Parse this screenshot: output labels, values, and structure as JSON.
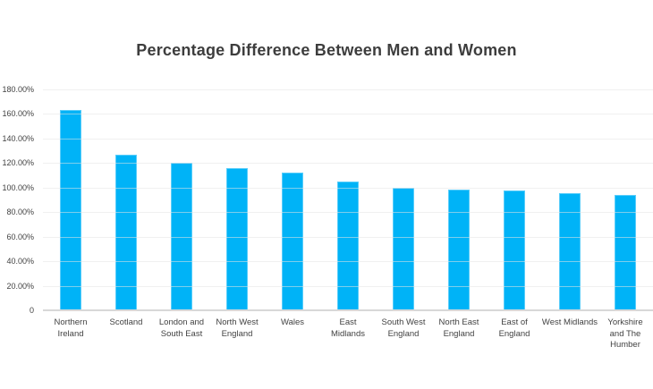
{
  "title": "Percentage Difference Between Men and Women",
  "chart_data": {
    "type": "bar",
    "title": "Percentage Difference Between Men and Women",
    "categories": [
      "Northern Ireland",
      "Scotland",
      "London and South East",
      "North West England",
      "Wales",
      "East Midlands",
      "South West England",
      "North East England",
      "East of England",
      "West Midlands",
      "Yorkshire and The Humber"
    ],
    "category_display": [
      "Northern\nIreland",
      "Scotland",
      "London and\nSouth East",
      "North West\nEngland",
      "Wales",
      "East\nMidlands",
      "South West\nEngland",
      "North East\nEngland",
      "East of\nEngland",
      "West Midlands",
      "Yorkshire\nand The\nHumber"
    ],
    "values": [
      163,
      126.5,
      120,
      116,
      112.5,
      105,
      100,
      98.5,
      97.5,
      95.5,
      94
    ],
    "unit": "%",
    "xlabel": "",
    "ylabel": "",
    "ylim": [
      0,
      180
    ],
    "y_ticks": [
      {
        "value": 180,
        "label": "180.00%"
      },
      {
        "value": 160,
        "label": "160.00%"
      },
      {
        "value": 140,
        "label": "140.00%"
      },
      {
        "value": 120,
        "label": "120.00%"
      },
      {
        "value": 100,
        "label": "100.00%"
      },
      {
        "value": 80,
        "label": "80.00%"
      },
      {
        "value": 60,
        "label": "60.00%"
      },
      {
        "value": 40,
        "label": "40.00%"
      },
      {
        "value": 20,
        "label": "20.00%"
      },
      {
        "value": 0,
        "label": "0"
      }
    ],
    "grid": "horizontal",
    "legend": "none",
    "colors": {
      "bar": "#00b3f7",
      "grid": "#f2f2f2",
      "axis_line": "#d8d8d8",
      "title": "#3d3d3d",
      "tick_label": "#424242",
      "background": "#ffffff"
    }
  }
}
